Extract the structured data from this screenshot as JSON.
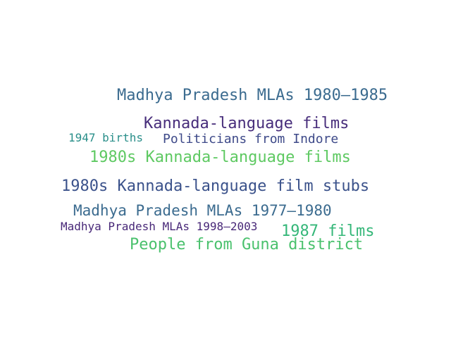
{
  "words": [
    {
      "text": "Madhya Pradesh MLAs 1980–1985",
      "color": "#3b6b8f"
    },
    {
      "text": "Kannada-language films",
      "color": "#472d7b"
    },
    {
      "text": "1947 births",
      "color": "#2a8f8a"
    },
    {
      "text": "Politicians from Indore",
      "color": "#3e4a89"
    },
    {
      "text": "1980s Kannada-language films",
      "color": "#5ec962"
    },
    {
      "text": "1980s Kannada-language film stubs",
      "color": "#3b528b"
    },
    {
      "text": "Madhya Pradesh MLAs 1977–1980",
      "color": "#3b6b8f"
    },
    {
      "text": "Madhya Pradesh MLAs 1998–2003",
      "color": "#482878"
    },
    {
      "text": "1987 films",
      "color": "#35b779"
    },
    {
      "text": "People from Guna district",
      "color": "#4ac16d"
    }
  ]
}
